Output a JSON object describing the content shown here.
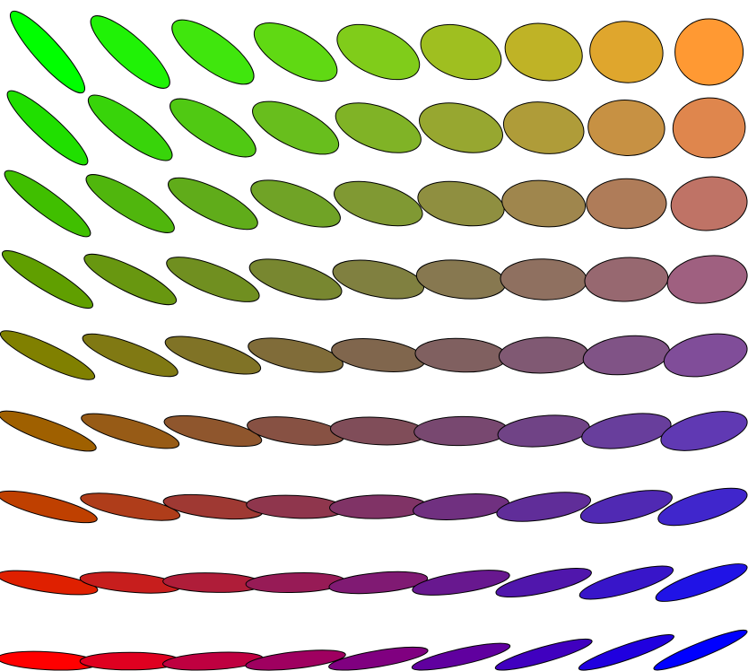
{
  "figure": {
    "type": "ellipse-grid",
    "rows": 9,
    "columns": 9,
    "background": "#ffffff",
    "outline_color": "#000000",
    "corner_colors": {
      "top_left": "#00ff00",
      "top_right": "#ff9933",
      "bottom_left": "#ff0000",
      "bottom_right": "#0000ff"
    }
  }
}
